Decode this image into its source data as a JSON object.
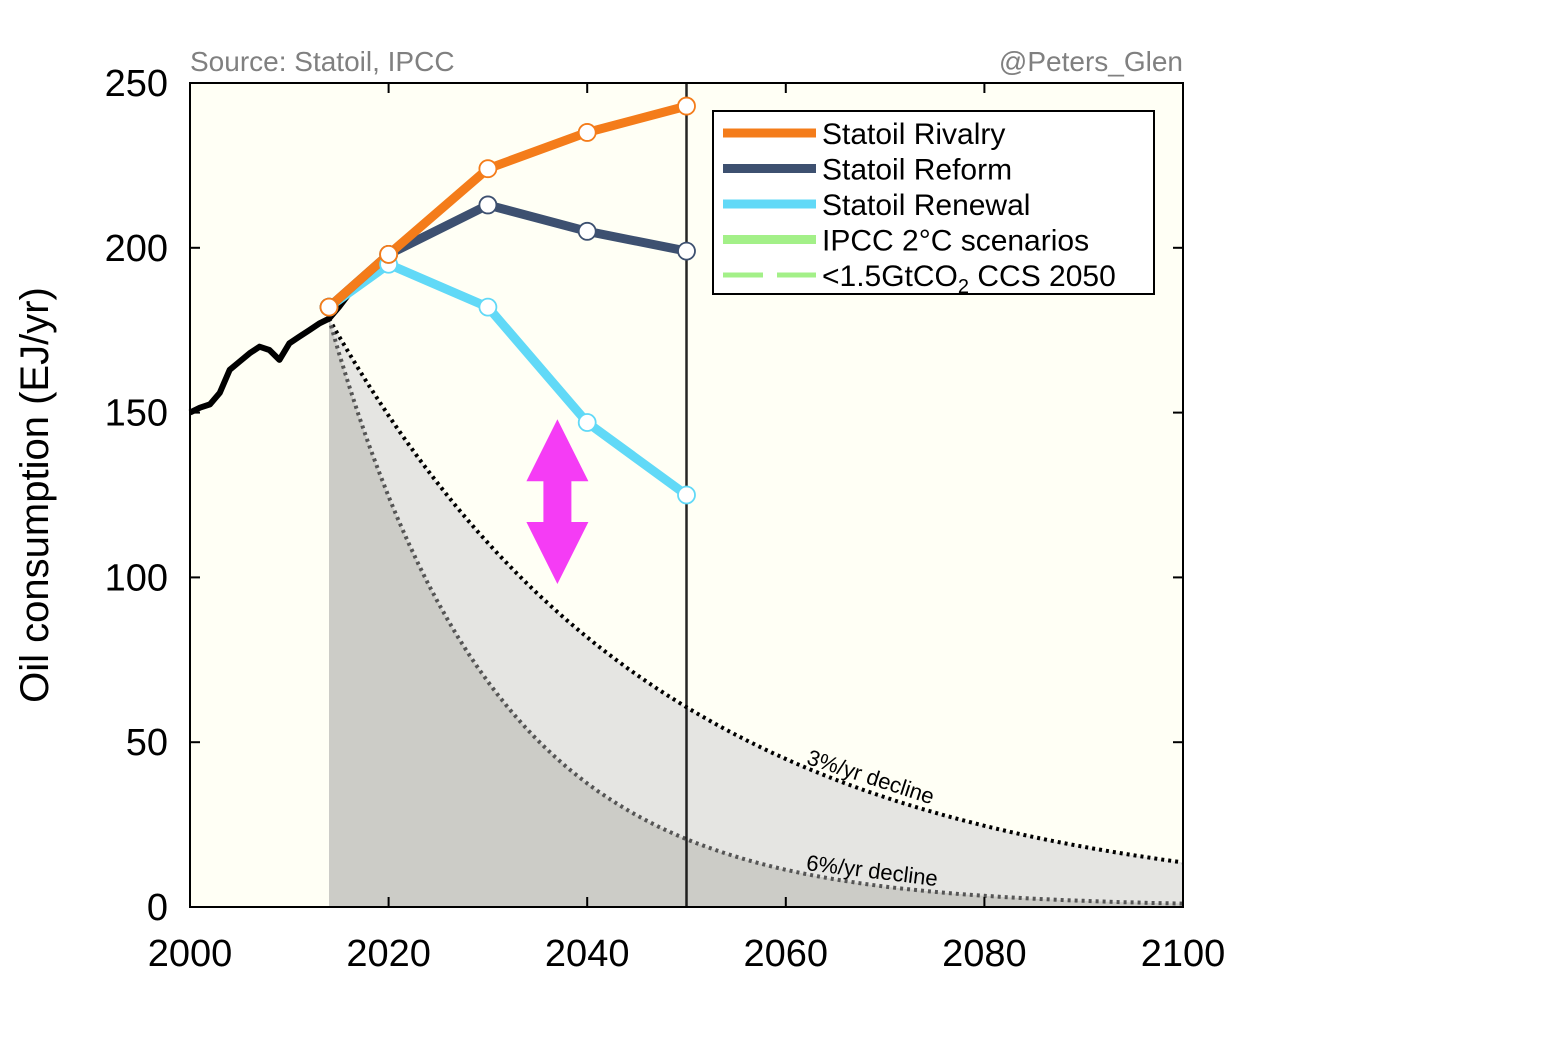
{
  "colors": {
    "plot_background": "#fffff5",
    "rivalry": "#f47c1a",
    "reform": "#3d5070",
    "renewal": "#61d9f7",
    "ipcc": "#a3f088",
    "ccs": "#a3f088",
    "historical": "#000000",
    "band_light": "#e5e5e2",
    "band_dark": "#ccccc7",
    "arrow": "#f53cf5",
    "credit": "#808080"
  },
  "chart_data": {
    "type": "line",
    "title": "",
    "xlabel": "",
    "ylabel": "Oil consumption (EJ/yr)",
    "xlim": [
      2000,
      2100
    ],
    "ylim": [
      0,
      250
    ],
    "xticks": [
      "2000",
      "2020",
      "2040",
      "2060",
      "2080",
      "2100"
    ],
    "yticks": [
      "0",
      "50",
      "100",
      "150",
      "200",
      "250"
    ],
    "source_left": "Source: Statoil, IPCC",
    "source_right": "@Peters_Glen",
    "reference_line_x": 2050,
    "historical": {
      "x": [
        2000,
        2001,
        2002,
        2003,
        2004,
        2005,
        2006,
        2007,
        2008,
        2009,
        2010,
        2011,
        2012,
        2013,
        2014,
        2015,
        2016
      ],
      "y": [
        150,
        151.5,
        152.5,
        156,
        163,
        165.5,
        168,
        170,
        169,
        166,
        171,
        173,
        175,
        177,
        178.5,
        182,
        186
      ]
    },
    "series": [
      {
        "name": "Statoil Rivalry",
        "color_key": "rivalry",
        "x": [
          2014,
          2020,
          2030,
          2040,
          2050
        ],
        "y": [
          182,
          198,
          224,
          235,
          243
        ]
      },
      {
        "name": "Statoil Reform",
        "color_key": "reform",
        "x": [
          2014,
          2020,
          2030,
          2040,
          2050
        ],
        "y": [
          182,
          198,
          213,
          205,
          199
        ]
      },
      {
        "name": "Statoil Renewal",
        "color_key": "renewal",
        "x": [
          2014,
          2020,
          2030,
          2040,
          2050
        ],
        "y": [
          182,
          195,
          182,
          147,
          125
        ]
      }
    ],
    "legend": [
      {
        "label": "Statoil Rivalry",
        "color_key": "rivalry",
        "style": "solid"
      },
      {
        "label": "Statoil Reform",
        "color_key": "reform",
        "style": "solid"
      },
      {
        "label": "Statoil Renewal",
        "color_key": "renewal",
        "style": "solid"
      },
      {
        "label": "IPCC 2°C scenarios",
        "color_key": "ipcc",
        "style": "solid"
      },
      {
        "label": "<1.5GtCO",
        "sub": "2",
        "label_suffix": " CCS 2050",
        "color_key": "ccs",
        "style": "dashed"
      }
    ],
    "decline_curves": [
      {
        "name": "3%/yr decline",
        "label": "3%/yr decline",
        "rate": 0.03,
        "start_year": 2014,
        "start_value": 178.5,
        "color": "#000000",
        "label_at_x": 2062
      },
      {
        "name": "6%/yr decline",
        "label": "6%/yr decline",
        "rate": 0.06,
        "start_year": 2014,
        "start_value": 178.5,
        "color": "#555555",
        "label_at_x": 2062
      }
    ],
    "arrow": {
      "x": 2037,
      "y_from": 98,
      "y_to": 148
    }
  }
}
